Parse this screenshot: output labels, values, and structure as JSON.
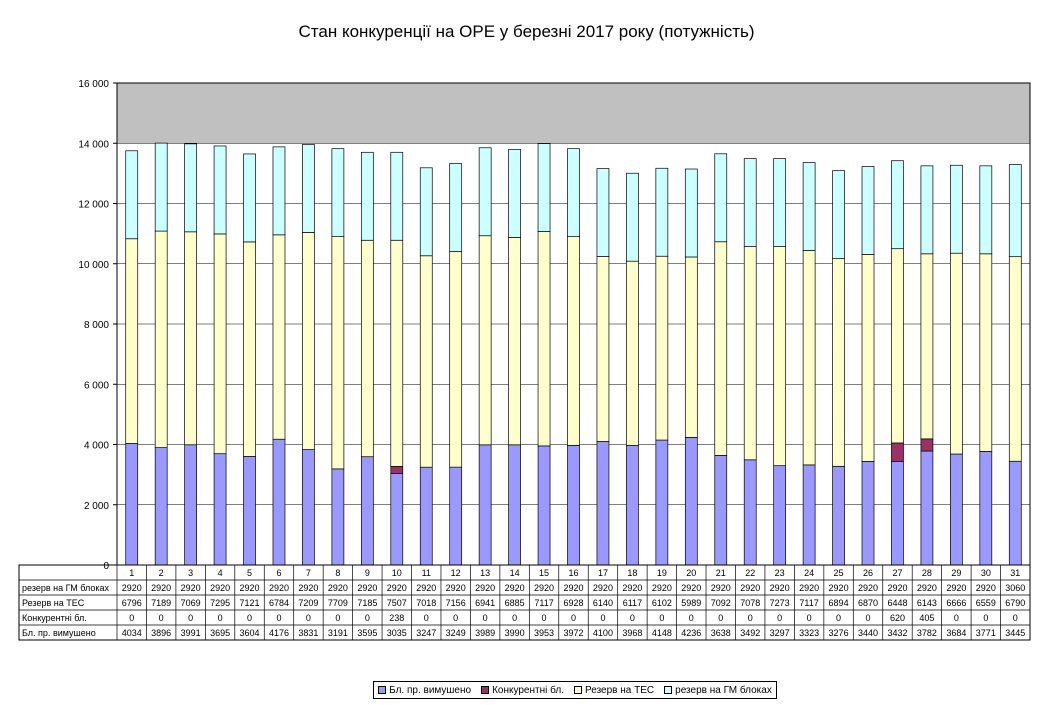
{
  "chart_data": {
    "type": "bar",
    "stacked": true,
    "title": "Стан конкуренції на ОРЕ  у березні 2017 року (потужність)",
    "categories": [
      "1",
      "2",
      "3",
      "4",
      "5",
      "6",
      "7",
      "8",
      "9",
      "10",
      "11",
      "12",
      "13",
      "14",
      "15",
      "16",
      "17",
      "18",
      "19",
      "20",
      "21",
      "22",
      "23",
      "24",
      "25",
      "26",
      "27",
      "28",
      "29",
      "30",
      "31"
    ],
    "ylim": [
      0,
      16000
    ],
    "yticks": [
      0,
      2000,
      4000,
      6000,
      8000,
      10000,
      12000,
      14000,
      16000
    ],
    "ytick_labels": [
      "0",
      "2 000",
      "4 000",
      "6 000",
      "8 000",
      "10 000",
      "12 000",
      "14 000",
      "16 000"
    ],
    "grid": true,
    "legend_position": "bottom",
    "series": [
      {
        "name": "Бл. пр. вимушено",
        "color": "#9999ff",
        "values": [
          4034,
          3896,
          3991,
          3695,
          3604,
          4176,
          3831,
          3191,
          3595,
          3035,
          3247,
          3249,
          3989,
          3990,
          3953,
          3972,
          4100,
          3968,
          4148,
          4236,
          3638,
          3492,
          3297,
          3323,
          3276,
          3440,
          3432,
          3782,
          3684,
          3771,
          3445
        ]
      },
      {
        "name": "Конкурентні бл.",
        "color": "#993366",
        "values": [
          0,
          0,
          0,
          0,
          0,
          0,
          0,
          0,
          0,
          238,
          0,
          0,
          0,
          0,
          0,
          0,
          0,
          0,
          0,
          0,
          0,
          0,
          0,
          0,
          0,
          0,
          620,
          405,
          0,
          0,
          0
        ]
      },
      {
        "name": "Резерв на ТЕС",
        "color": "#ffffcc",
        "values": [
          6796,
          7189,
          7069,
          7295,
          7121,
          6784,
          7209,
          7709,
          7185,
          7507,
          7018,
          7156,
          6941,
          6885,
          7117,
          6928,
          6140,
          6117,
          6102,
          5989,
          7092,
          7078,
          7273,
          7117,
          6894,
          6870,
          6448,
          6143,
          6666,
          6559,
          6790
        ]
      },
      {
        "name": "резерв на ГМ блоках",
        "color": "#ccffff",
        "values": [
          2920,
          2920,
          2920,
          2920,
          2920,
          2920,
          2920,
          2920,
          2920,
          2920,
          2920,
          2920,
          2920,
          2920,
          2920,
          2920,
          2920,
          2920,
          2920,
          2920,
          2920,
          2920,
          2920,
          2920,
          2920,
          2920,
          2920,
          2920,
          2920,
          2920,
          3060
        ]
      }
    ],
    "table_rows": [
      "резерв на ГМ блоках",
      "Резерв на ТЕС",
      "Конкурентні бл.",
      "Бл. пр. вимушено"
    ],
    "legend_order": [
      "Бл. пр. вимушено",
      "Конкурентні бл.",
      "Резерв на ТЕС",
      "резерв на ГМ блоках"
    ]
  },
  "colors": {
    "plot_background": "#c0c0c0",
    "plot_inner": "#ffffff",
    "gridline": "#000000"
  }
}
